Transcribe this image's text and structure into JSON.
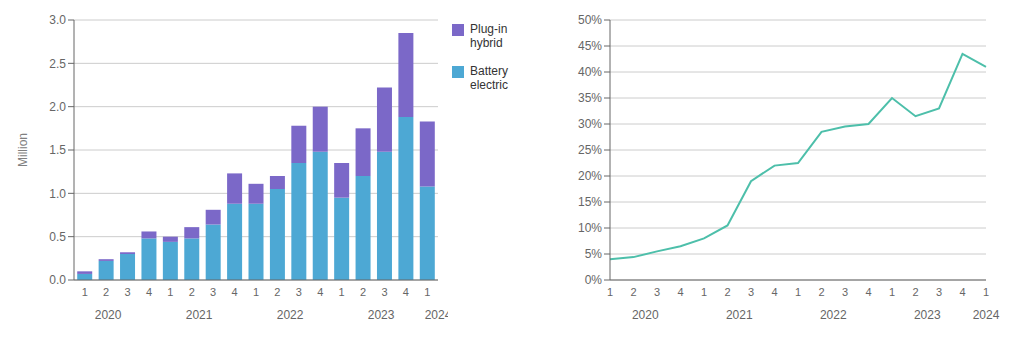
{
  "chart_data": [
    {
      "type": "bar",
      "stacked": true,
      "categories": [
        "1",
        "2",
        "3",
        "4",
        "1",
        "2",
        "3",
        "4",
        "1",
        "2",
        "3",
        "4",
        "1",
        "2",
        "3",
        "4",
        "1"
      ],
      "annotations": [
        {
          "text": "2020",
          "from": 0,
          "to": 3
        },
        {
          "text": "2021",
          "from": 4,
          "to": 7
        },
        {
          "text": "2022",
          "from": 8,
          "to": 11
        },
        {
          "text": "2023",
          "from": 12,
          "to": 15
        },
        {
          "text": "2024",
          "from": 16,
          "to": 16
        }
      ],
      "ylabel": "Million",
      "ylim": [
        0,
        3.0
      ],
      "yticks": [
        {
          "value": 0,
          "label": "0.0"
        },
        0.5,
        {
          "value": 1,
          "label": "1.0"
        },
        1.5,
        {
          "value": 2,
          "label": "2.0"
        },
        2.5,
        {
          "value": 3,
          "label": "3.0"
        }
      ],
      "grid": true,
      "legend": "right",
      "series": [
        {
          "name": "Battery\nelectric",
          "color": "#4DA8D4",
          "values": [
            0.07,
            0.22,
            0.3,
            0.48,
            0.44,
            0.48,
            0.64,
            0.88,
            0.88,
            1.05,
            1.35,
            1.48,
            0.95,
            1.2,
            1.48,
            1.88,
            1.08
          ]
        },
        {
          "name": "Plug-in\nhybrid",
          "color": "#7B68C8",
          "values": [
            0.03,
            0.02,
            0.02,
            0.08,
            0.06,
            0.13,
            0.17,
            0.35,
            0.23,
            0.15,
            0.43,
            0.52,
            0.4,
            0.55,
            0.74,
            0.97,
            0.75
          ]
        }
      ]
    },
    {
      "type": "line",
      "categories": [
        "1",
        "2",
        "3",
        "4",
        "1",
        "2",
        "3",
        "4",
        "1",
        "2",
        "3",
        "4",
        "1",
        "2",
        "3",
        "4",
        "1"
      ],
      "annotations": [
        {
          "text": "2020",
          "from": 0,
          "to": 3
        },
        {
          "text": "2021",
          "from": 4,
          "to": 7
        },
        {
          "text": "2022",
          "from": 8,
          "to": 11
        },
        {
          "text": "2023",
          "from": 12,
          "to": 15
        },
        {
          "text": "2024",
          "from": 16,
          "to": 16
        }
      ],
      "ylim": [
        0,
        50
      ],
      "yticks": [
        {
          "value": 0,
          "label": "0%"
        },
        {
          "value": 5,
          "label": "5%"
        },
        {
          "value": 10,
          "label": "10%"
        },
        {
          "value": 15,
          "label": "15%"
        },
        {
          "value": 20,
          "label": "20%"
        },
        {
          "value": 25,
          "label": "25%"
        },
        {
          "value": 30,
          "label": "30%"
        },
        {
          "value": 35,
          "label": "35%"
        },
        {
          "value": 40,
          "label": "40%"
        },
        {
          "value": 45,
          "label": "45%"
        },
        {
          "value": 50,
          "label": "50%"
        }
      ],
      "grid": true,
      "series": [
        {
          "color": "#4DBFAA",
          "values": [
            4.0,
            4.4,
            5.5,
            6.5,
            8.0,
            10.5,
            19.0,
            22.0,
            22.5,
            28.5,
            29.5,
            30.0,
            35.0,
            31.5,
            33.0,
            43.5,
            41.0
          ]
        }
      ]
    }
  ]
}
